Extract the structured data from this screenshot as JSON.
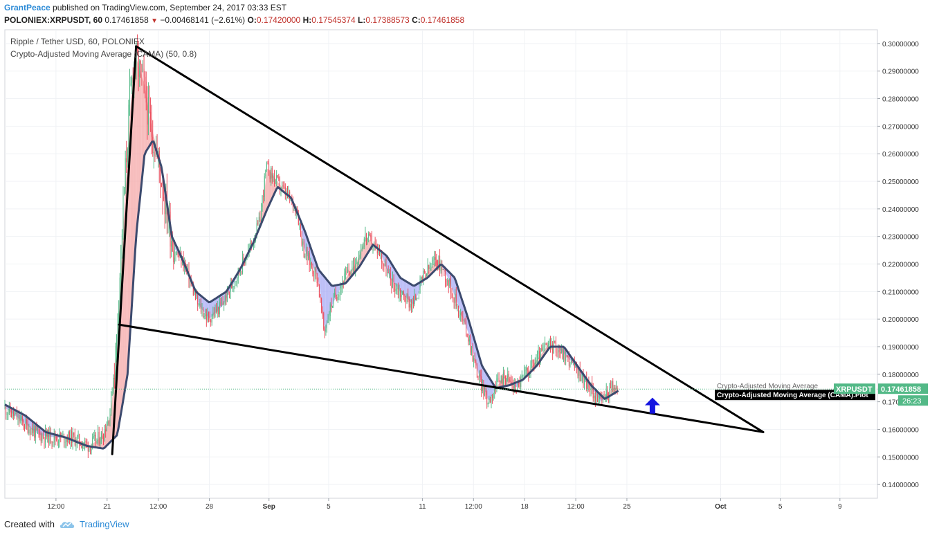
{
  "header": {
    "author": "GrantPeace",
    "published_text": "published on TradingView.com, September 24, 2017 03:33 EST"
  },
  "ohlc": {
    "symbol": "POLONIEX:XRPUSDT, 60",
    "last": "0.17461858",
    "change": "−0.00468141 (−2.61%)",
    "o_label": "O:",
    "o": "0.17420000",
    "h_label": "H:",
    "h": "0.17545374",
    "l_label": "L:",
    "l": "0.17388573",
    "c_label": "C:",
    "c": "0.17461858"
  },
  "footer": {
    "created_with": "Created with",
    "brand": "TradingView"
  },
  "colors": {
    "up": "#53b987",
    "down": "#eb4d5c",
    "cama": "#3c4a6e",
    "fill_bull": "#f4a7a7",
    "fill_bear": "#a7a9f4",
    "price_tag": "#53b987",
    "brand": "#2b8ad6",
    "arrow": "#1515e0"
  },
  "chart_data": {
    "type": "candlestick",
    "title": "Ripple / Tether USD, 60, POLONIEX",
    "indicator": "Crypto-Adjusted Moving Average (CAMA) (50, 0.8)",
    "xlabel": "",
    "ylabel": "",
    "ylim": [
      0.135,
      0.305
    ],
    "y_ticks": [
      "0.30000000",
      "0.29000000",
      "0.28000000",
      "0.27000000",
      "0.26000000",
      "0.25000000",
      "0.24000000",
      "0.23000000",
      "0.22000000",
      "0.21000000",
      "0.20000000",
      "0.19000000",
      "0.18000000",
      "0.17000000",
      "0.16000000",
      "0.15000000",
      "0.14000000"
    ],
    "x_ticks": [
      {
        "label": "12:00",
        "t": 1.5
      },
      {
        "label": "21",
        "t": 3.0
      },
      {
        "label": "12:00",
        "t": 4.5
      },
      {
        "label": "28",
        "t": 6.0
      },
      {
        "label": "Sep",
        "t": 7.75
      },
      {
        "label": "5",
        "t": 9.5
      },
      {
        "label": "11",
        "t": 12.25
      },
      {
        "label": "12:00",
        "t": 13.75
      },
      {
        "label": "18",
        "t": 15.25
      },
      {
        "label": "12:00",
        "t": 16.75
      },
      {
        "label": "25",
        "t": 18.25
      },
      {
        "label": "Oct",
        "t": 21.0
      },
      {
        "label": "5",
        "t": 22.75
      },
      {
        "label": "9",
        "t": 24.5
      }
    ],
    "x_range": [
      0,
      25.6
    ],
    "last_price": 0.17461858,
    "price_label": "XRPUSDT",
    "price_value": "0.17461858",
    "countdown": "26:23",
    "cama_label": "Crypto-Adjusted Moving Average (CAMA).Plot",
    "cama_label_ghost": "Crypto-Adjusted Moving Average",
    "path_anchors": [
      [
        0,
        0.168
      ],
      [
        0.5,
        0.163
      ],
      [
        1.0,
        0.158
      ],
      [
        1.5,
        0.157
      ],
      [
        2.0,
        0.157
      ],
      [
        2.5,
        0.154
      ],
      [
        2.9,
        0.158
      ],
      [
        3.1,
        0.165
      ],
      [
        3.3,
        0.19
      ],
      [
        3.5,
        0.24
      ],
      [
        3.7,
        0.28
      ],
      [
        3.85,
        0.295
      ],
      [
        4.1,
        0.285
      ],
      [
        4.3,
        0.27
      ],
      [
        4.5,
        0.26
      ],
      [
        4.7,
        0.245
      ],
      [
        5.0,
        0.225
      ],
      [
        5.3,
        0.22
      ],
      [
        5.7,
        0.205
      ],
      [
        6.0,
        0.2
      ],
      [
        6.4,
        0.205
      ],
      [
        6.8,
        0.215
      ],
      [
        7.2,
        0.225
      ],
      [
        7.5,
        0.235
      ],
      [
        7.7,
        0.255
      ],
      [
        8.0,
        0.25
      ],
      [
        8.3,
        0.245
      ],
      [
        8.6,
        0.24
      ],
      [
        8.8,
        0.225
      ],
      [
        9.2,
        0.215
      ],
      [
        9.4,
        0.195
      ],
      [
        9.6,
        0.205
      ],
      [
        10.0,
        0.215
      ],
      [
        10.3,
        0.22
      ],
      [
        10.6,
        0.23
      ],
      [
        11.0,
        0.225
      ],
      [
        11.3,
        0.215
      ],
      [
        11.6,
        0.21
      ],
      [
        12.0,
        0.205
      ],
      [
        12.3,
        0.215
      ],
      [
        12.7,
        0.222
      ],
      [
        13.0,
        0.215
      ],
      [
        13.3,
        0.205
      ],
      [
        13.6,
        0.195
      ],
      [
        13.9,
        0.18
      ],
      [
        14.2,
        0.17
      ],
      [
        14.4,
        0.175
      ],
      [
        14.7,
        0.18
      ],
      [
        15.0,
        0.175
      ],
      [
        15.3,
        0.18
      ],
      [
        15.6,
        0.185
      ],
      [
        15.9,
        0.19
      ],
      [
        16.2,
        0.19
      ],
      [
        16.6,
        0.185
      ],
      [
        16.9,
        0.18
      ],
      [
        17.2,
        0.175
      ],
      [
        17.5,
        0.17
      ],
      [
        17.8,
        0.175
      ],
      [
        18.0,
        0.175
      ]
    ],
    "cama_anchors": [
      [
        0,
        0.169
      ],
      [
        0.6,
        0.165
      ],
      [
        1.2,
        0.159
      ],
      [
        1.8,
        0.157
      ],
      [
        2.4,
        0.154
      ],
      [
        2.9,
        0.153
      ],
      [
        3.3,
        0.158
      ],
      [
        3.6,
        0.18
      ],
      [
        3.85,
        0.23
      ],
      [
        4.1,
        0.26
      ],
      [
        4.35,
        0.265
      ],
      [
        4.6,
        0.255
      ],
      [
        4.9,
        0.23
      ],
      [
        5.2,
        0.222
      ],
      [
        5.6,
        0.21
      ],
      [
        6.0,
        0.206
      ],
      [
        6.5,
        0.21
      ],
      [
        6.9,
        0.218
      ],
      [
        7.3,
        0.228
      ],
      [
        7.7,
        0.24
      ],
      [
        8.0,
        0.248
      ],
      [
        8.4,
        0.244
      ],
      [
        8.8,
        0.232
      ],
      [
        9.2,
        0.218
      ],
      [
        9.6,
        0.212
      ],
      [
        10.0,
        0.213
      ],
      [
        10.4,
        0.219
      ],
      [
        10.8,
        0.227
      ],
      [
        11.2,
        0.223
      ],
      [
        11.6,
        0.215
      ],
      [
        12.0,
        0.212
      ],
      [
        12.4,
        0.215
      ],
      [
        12.8,
        0.22
      ],
      [
        13.2,
        0.215
      ],
      [
        13.6,
        0.2
      ],
      [
        14.0,
        0.183
      ],
      [
        14.4,
        0.175
      ],
      [
        14.8,
        0.176
      ],
      [
        15.2,
        0.178
      ],
      [
        15.6,
        0.183
      ],
      [
        16.0,
        0.19
      ],
      [
        16.4,
        0.19
      ],
      [
        16.8,
        0.183
      ],
      [
        17.2,
        0.176
      ],
      [
        17.6,
        0.171
      ],
      [
        18.0,
        0.174
      ]
    ],
    "trendlines": [
      {
        "name": "upper-line",
        "from": [
          3.85,
          0.299
        ],
        "to": [
          22.25,
          0.159
        ]
      },
      {
        "name": "lower-line",
        "from": [
          3.35,
          0.198
        ],
        "to": [
          22.25,
          0.159
        ]
      },
      {
        "name": "rise-line",
        "from": [
          3.15,
          0.151
        ],
        "to": [
          3.85,
          0.299
        ]
      }
    ],
    "annotation": {
      "type": "up-arrow",
      "t": 19.0,
      "y": 0.168
    },
    "grid": true,
    "legend": "top-left"
  }
}
